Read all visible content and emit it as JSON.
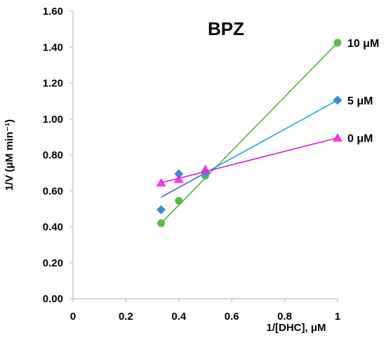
{
  "chart_data": {
    "type": "scatter",
    "title": "BPZ",
    "xlabel": "1/[DHC], μM",
    "ylabel": "1/V (μM min⁻¹)",
    "xlim": [
      0,
      1
    ],
    "ylim": [
      0,
      1.6
    ],
    "x_ticks": [
      "0",
      "0.2",
      "0.4",
      "0.6",
      "0.8",
      "1"
    ],
    "y_ticks": [
      "0.00",
      "0.20",
      "0.40",
      "0.60",
      "0.80",
      "1.00",
      "1.20",
      "1.40",
      "1.60"
    ],
    "grid": false,
    "series": [
      {
        "name": "10 μM",
        "marker": "circle",
        "color": "#5cba47",
        "points": [
          [
            0.333,
            0.42
          ],
          [
            0.4,
            0.545
          ],
          [
            0.5,
            0.685
          ],
          [
            1.0,
            1.425
          ]
        ],
        "fit": [
          [
            0.333,
            0.42
          ],
          [
            1.0,
            1.425
          ]
        ]
      },
      {
        "name": "5 μM",
        "marker": "diamond",
        "color": "#2f8fe0",
        "points": [
          [
            0.333,
            0.495
          ],
          [
            0.4,
            0.695
          ],
          [
            0.5,
            0.7
          ],
          [
            1.0,
            1.105
          ]
        ],
        "fit": [
          [
            0.333,
            0.565
          ],
          [
            1.0,
            1.105
          ]
        ]
      },
      {
        "name": "0 μM",
        "marker": "triangle",
        "color": "#ee1ee0",
        "points": [
          [
            0.333,
            0.645
          ],
          [
            0.4,
            0.665
          ],
          [
            0.5,
            0.72
          ],
          [
            1.0,
            0.895
          ]
        ],
        "fit": [
          [
            0.333,
            0.645
          ],
          [
            1.0,
            0.895
          ]
        ]
      }
    ],
    "fit_line_colors": {
      "10 μM": "#4fb83a",
      "5 μM": "#1aa6e0",
      "0 μM": "#e020d0"
    },
    "overlay_color": "#6a5fd6",
    "axis_color": "#bfbfbf"
  }
}
